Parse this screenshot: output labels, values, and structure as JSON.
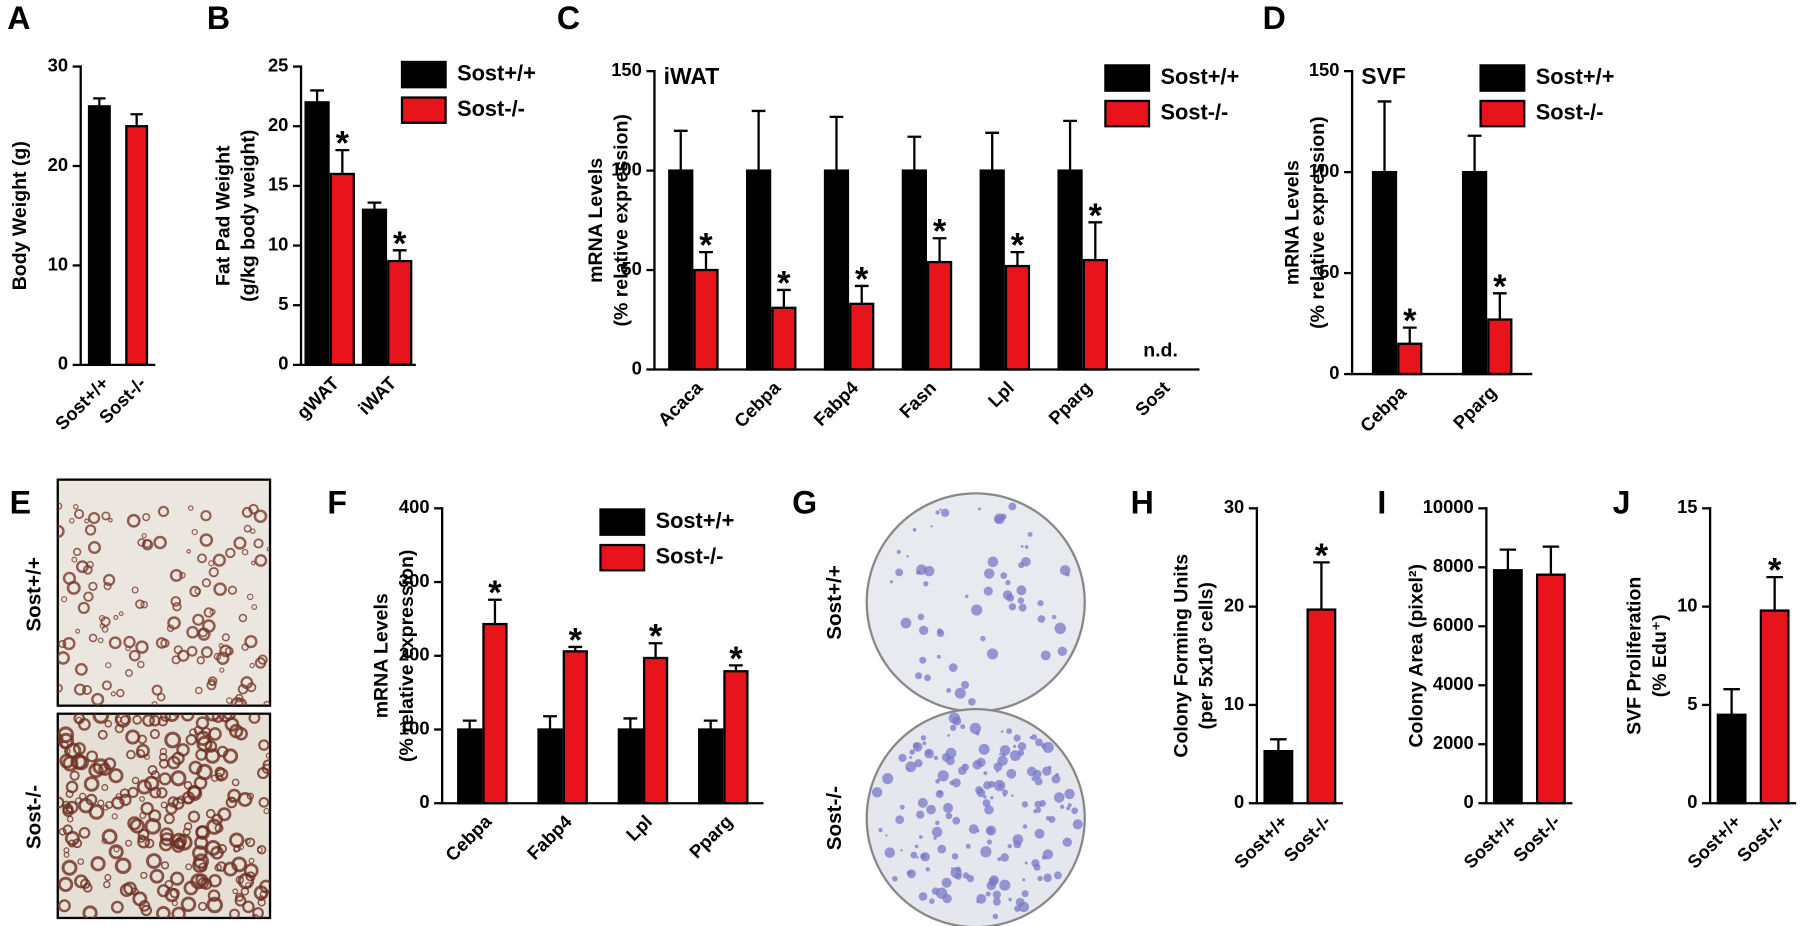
{
  "chart_data": [
    {
      "type": "bar",
      "panel": "A",
      "ylabel": [
        "Body Weight (g)"
      ],
      "categories": [
        "Sost+/+",
        "Sost-/-"
      ],
      "series": [
        {
          "colors": [
            "#000000",
            "#e8141b"
          ],
          "values": [
            26,
            24
          ],
          "errors": [
            0.8,
            1.2
          ],
          "sig": [
            null,
            null
          ]
        }
      ],
      "ylim": [
        0,
        30
      ],
      "yticks": [
        0,
        10,
        20,
        30
      ],
      "rotate_labels": true
    },
    {
      "type": "bar",
      "panel": "B",
      "ylabel": [
        "Fat Pad Weight",
        "(g/kg body weight)"
      ],
      "categories": [
        "gWAT",
        "iWAT"
      ],
      "series": [
        {
          "name": "Sost+/+",
          "color": "#000000",
          "values": [
            22,
            13
          ],
          "errors": [
            1.0,
            0.6
          ],
          "sig": [
            null,
            null
          ]
        },
        {
          "name": "Sost-/-",
          "color": "#e8141b",
          "values": [
            16,
            8.7
          ],
          "errors": [
            2.0,
            0.9
          ],
          "sig": [
            "*",
            "*"
          ]
        }
      ],
      "ylim": [
        0,
        25
      ],
      "yticks": [
        0,
        5,
        10,
        15,
        20,
        25
      ],
      "legend": "upper right",
      "rotate_labels": true
    },
    {
      "type": "bar",
      "panel": "C",
      "inset_label": "iWAT",
      "ylabel": [
        "mRNA Levels",
        "(% relative expression)"
      ],
      "categories": [
        "Acaca",
        "Cebpa",
        "Fabp4",
        "Fasn",
        "Lpl",
        "Pparg",
        "Sost"
      ],
      "series": [
        {
          "name": "Sost+/+",
          "color": "#000000",
          "values": [
            100,
            100,
            100,
            100,
            100,
            100,
            null
          ],
          "errors": [
            20,
            30,
            27,
            17,
            19,
            25,
            null
          ],
          "sig": [
            null,
            null,
            null,
            null,
            null,
            null,
            null
          ]
        },
        {
          "name": "Sost-/-",
          "color": "#e8141b",
          "values": [
            50,
            31,
            33,
            54,
            52,
            55,
            null
          ],
          "errors": [
            9,
            9,
            9,
            12,
            7,
            19,
            null
          ],
          "sig": [
            "*",
            "*",
            "*",
            "*",
            "*",
            "*",
            null
          ]
        }
      ],
      "annotations": [
        {
          "text": "n.d.",
          "category": 6
        }
      ],
      "ylim": [
        0,
        150
      ],
      "yticks": [
        0,
        50,
        100,
        150
      ],
      "legend": "upper right",
      "rotate_labels": true
    },
    {
      "type": "bar",
      "panel": "D",
      "inset_label": "SVF",
      "ylabel": [
        "mRNA Levels",
        "(% relative expression)"
      ],
      "categories": [
        "Cebpa",
        "Pparg"
      ],
      "series": [
        {
          "name": "Sost+/+",
          "color": "#000000",
          "values": [
            100,
            100
          ],
          "errors": [
            35,
            18
          ],
          "sig": [
            null,
            null
          ]
        },
        {
          "name": "Sost-/-",
          "color": "#e8141b",
          "values": [
            15,
            27
          ],
          "errors": [
            8,
            13
          ],
          "sig": [
            "*",
            "*"
          ]
        }
      ],
      "ylim": [
        0,
        150
      ],
      "yticks": [
        0,
        50,
        100,
        150
      ],
      "legend": "upper right",
      "rotate_labels": true
    },
    {
      "type": "bar",
      "panel": "F",
      "ylabel": [
        "mRNA Levels",
        "(% relative expression)"
      ],
      "categories": [
        "Cebpa",
        "Fabp4",
        "Lpl",
        "Pparg"
      ],
      "series": [
        {
          "name": "Sost+/+",
          "color": "#000000",
          "values": [
            100,
            100,
            100,
            100
          ],
          "errors": [
            12,
            18,
            15,
            12
          ],
          "sig": [
            null,
            null,
            null,
            null
          ]
        },
        {
          "name": "Sost-/-",
          "color": "#e8141b",
          "values": [
            243,
            206,
            197,
            179
          ],
          "errors": [
            33,
            6,
            20,
            8
          ],
          "sig": [
            "*",
            "*",
            "*",
            "*"
          ]
        }
      ],
      "ylim": [
        0,
        400
      ],
      "yticks": [
        0,
        100,
        200,
        300,
        400
      ],
      "legend": "upper right",
      "rotate_labels": true
    },
    {
      "type": "bar",
      "panel": "H",
      "ylabel": [
        "Colony Forming Units",
        "(per 5x10³ cells)"
      ],
      "categories": [
        "Sost+/+",
        "Sost-/-"
      ],
      "series": [
        {
          "colors": [
            "#000000",
            "#e8141b"
          ],
          "values": [
            5.3,
            19.7
          ],
          "errors": [
            1.2,
            4.8
          ],
          "sig": [
            null,
            "*"
          ]
        }
      ],
      "ylim": [
        0,
        30
      ],
      "yticks": [
        0,
        10,
        20,
        30
      ],
      "rotate_labels": true
    },
    {
      "type": "bar",
      "panel": "I",
      "ylabel": [
        "Colony Area (pixel²)"
      ],
      "categories": [
        "Sost+/+",
        "Sost-/-"
      ],
      "series": [
        {
          "colors": [
            "#000000",
            "#e8141b"
          ],
          "values": [
            7900,
            7750
          ],
          "errors": [
            700,
            950
          ],
          "sig": [
            null,
            null
          ]
        }
      ],
      "ylim": [
        0,
        10000
      ],
      "yticks": [
        0,
        2000,
        4000,
        6000,
        8000,
        10000
      ],
      "rotate_labels": true
    },
    {
      "type": "bar",
      "panel": "J",
      "ylabel": [
        "SVF Proliferation",
        "(% Edu⁺)"
      ],
      "categories": [
        "Sost+/+",
        "Sost-/-"
      ],
      "series": [
        {
          "colors": [
            "#000000",
            "#e8141b"
          ],
          "values": [
            4.5,
            9.8
          ],
          "errors": [
            1.3,
            1.7
          ],
          "sig": [
            null,
            "*"
          ]
        }
      ],
      "ylim": [
        0,
        15
      ],
      "yticks": [
        0,
        5,
        10,
        15
      ],
      "rotate_labels": true
    }
  ],
  "image_panels": [
    {
      "panel": "E",
      "labels": [
        "Sost+/+",
        "Sost-/-"
      ]
    },
    {
      "panel": "G",
      "labels": [
        "Sost+/+",
        "Sost-/-"
      ]
    }
  ]
}
